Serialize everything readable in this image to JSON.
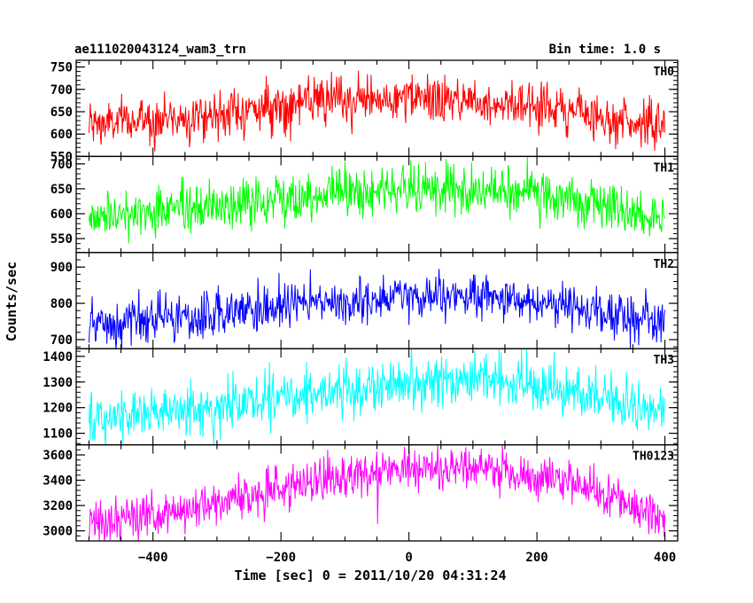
{
  "header": {
    "left_title": "ae111020043124_wam3_trn",
    "right_title": "Bin time: 1.0 s"
  },
  "chart_data": {
    "type": "line",
    "title": "ae111020043124_wam3_trn",
    "xlabel": "Time [sec] 0 = 2011/10/20 04:31:24",
    "ylabel": "Counts/sec",
    "xlim": [
      -520,
      420
    ],
    "x_ticks": [
      -400,
      -200,
      0,
      200,
      400
    ],
    "x_tick_labels": [
      "−400",
      "−200",
      "0",
      "200",
      "400"
    ],
    "x_start": -500,
    "x_end": 400,
    "bin_time_s": 1.0,
    "grid": false,
    "panels": [
      {
        "name": "TH0",
        "color": "#ff0000",
        "ylim": [
          550,
          765
        ],
        "y_ticks": [
          550,
          600,
          650,
          700,
          750
        ],
        "trend": [
          [
            -500,
            620
          ],
          [
            -300,
            645
          ],
          [
            -150,
            672
          ],
          [
            0,
            678
          ],
          [
            100,
            675
          ],
          [
            200,
            665
          ],
          [
            300,
            640
          ],
          [
            400,
            615
          ]
        ],
        "noise_amplitude": 26,
        "min": 550,
        "max": 765
      },
      {
        "name": "TH1",
        "color": "#00ff00",
        "ylim": [
          522,
          715
        ],
        "y_ticks": [
          550,
          600,
          650,
          700
        ],
        "trend": [
          [
            -500,
            595
          ],
          [
            -300,
            612
          ],
          [
            -150,
            640
          ],
          [
            0,
            650
          ],
          [
            100,
            648
          ],
          [
            200,
            638
          ],
          [
            300,
            612
          ],
          [
            400,
            588
          ]
        ],
        "noise_amplitude": 25,
        "min": 522,
        "max": 715
      },
      {
        "name": "TH2",
        "color": "#0000ff",
        "ylim": [
          675,
          940
        ],
        "y_ticks": [
          700,
          800,
          900
        ],
        "trend": [
          [
            -500,
            735
          ],
          [
            -300,
            765
          ],
          [
            -150,
            800
          ],
          [
            0,
            815
          ],
          [
            100,
            818
          ],
          [
            200,
            805
          ],
          [
            300,
            775
          ],
          [
            400,
            750
          ]
        ],
        "noise_amplitude": 32,
        "min": 675,
        "max": 940
      },
      {
        "name": "TH3",
        "color": "#00ffff",
        "ylim": [
          1055,
          1430
        ],
        "y_ticks": [
          1100,
          1200,
          1300,
          1400
        ],
        "trend": [
          [
            -500,
            1150
          ],
          [
            -300,
            1200
          ],
          [
            -150,
            1260
          ],
          [
            0,
            1300
          ],
          [
            100,
            1310
          ],
          [
            200,
            1285
          ],
          [
            300,
            1240
          ],
          [
            400,
            1170
          ]
        ],
        "noise_amplitude": 50,
        "min": 1055,
        "max": 1430
      },
      {
        "name": "TH0123",
        "color": "#ff00ff",
        "ylim": [
          2920,
          3680
        ],
        "y_ticks": [
          3000,
          3200,
          3400,
          3600
        ],
        "trend": [
          [
            -500,
            3040
          ],
          [
            -300,
            3220
          ],
          [
            -150,
            3400
          ],
          [
            0,
            3480
          ],
          [
            100,
            3490
          ],
          [
            200,
            3440
          ],
          [
            300,
            3300
          ],
          [
            400,
            3080
          ]
        ],
        "noise_amplitude": 90,
        "min": 2920,
        "max": 3680
      }
    ]
  }
}
